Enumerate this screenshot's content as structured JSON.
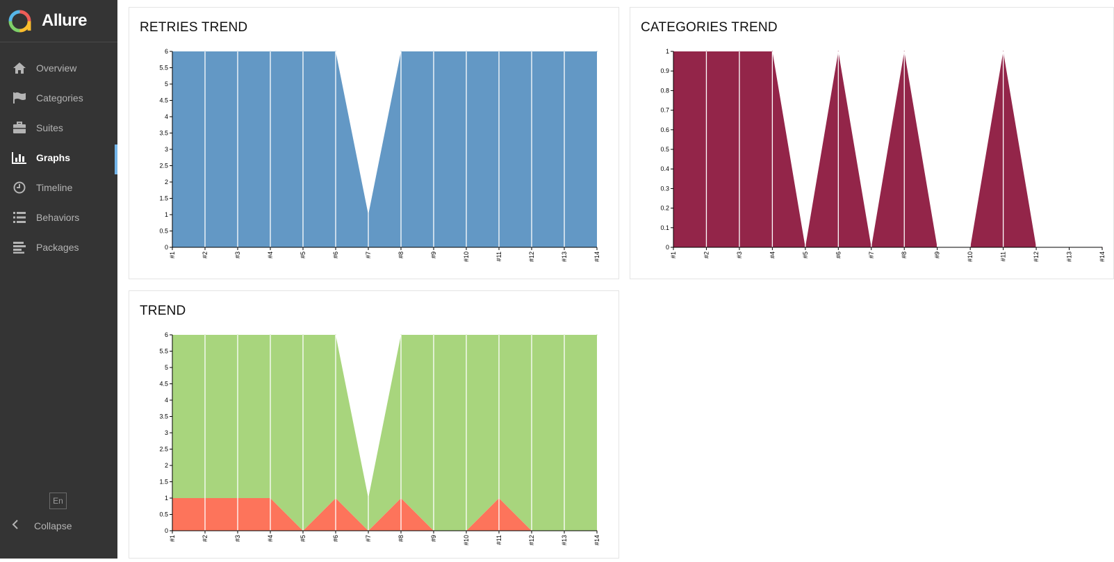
{
  "app": {
    "name": "Allure"
  },
  "colors": {
    "sidebar_bg": "#343434",
    "active_indicator": "#73b5e9",
    "retries": "#6398c5",
    "categories": "#932549",
    "passed": "#a8d57d",
    "failed": "#fd745b"
  },
  "sidebar": {
    "items": [
      {
        "label": "Overview",
        "icon": "home-icon",
        "active": false
      },
      {
        "label": "Categories",
        "icon": "flag-icon",
        "active": false
      },
      {
        "label": "Suites",
        "icon": "briefcase-icon",
        "active": false
      },
      {
        "label": "Graphs",
        "icon": "bar-chart-icon",
        "active": true
      },
      {
        "label": "Timeline",
        "icon": "clock-icon",
        "active": false
      },
      {
        "label": "Behaviors",
        "icon": "list-icon",
        "active": false
      },
      {
        "label": "Packages",
        "icon": "align-left-icon",
        "active": false
      }
    ],
    "language": "En",
    "collapse_label": "Collapse"
  },
  "widgets": {
    "retries": {
      "title": "RETRIES TREND"
    },
    "categories": {
      "title": "CATEGORIES TREND"
    },
    "trend": {
      "title": "TREND"
    }
  },
  "chart_data": [
    {
      "id": "retries",
      "type": "area",
      "title": "RETRIES TREND",
      "categories": [
        "#1",
        "#2",
        "#3",
        "#4",
        "#5",
        "#6",
        "#7",
        "#8",
        "#9",
        "#10",
        "#11",
        "#12",
        "#13",
        "#14"
      ],
      "ylim": [
        0,
        6
      ],
      "yticks": [
        "0",
        "0.5",
        "1",
        "1.5",
        "2",
        "2.5",
        "3",
        "3.5",
        "4",
        "4.5",
        "5",
        "5.5",
        "6"
      ],
      "series": [
        {
          "color": "#6398c5",
          "values": [
            6,
            6,
            6,
            6,
            6,
            6,
            1,
            6,
            6,
            6,
            6,
            6,
            6,
            6
          ]
        }
      ]
    },
    {
      "id": "categories",
      "type": "area",
      "title": "CATEGORIES TREND",
      "categories": [
        "#1",
        "#2",
        "#3",
        "#4",
        "#5",
        "#6",
        "#7",
        "#8",
        "#9",
        "#10",
        "#11",
        "#12",
        "#13",
        "#14"
      ],
      "ylim": [
        0,
        1
      ],
      "yticks": [
        "0",
        "0.1",
        "0.2",
        "0.3",
        "0.4",
        "0.5",
        "0.6",
        "0.7",
        "0.8",
        "0.9",
        "1"
      ],
      "series": [
        {
          "color": "#932549",
          "values": [
            1,
            1,
            1,
            1,
            0,
            1,
            0,
            1,
            0,
            0,
            1,
            0,
            0,
            0
          ]
        }
      ]
    },
    {
      "id": "trend",
      "type": "area",
      "stacked": true,
      "title": "TREND",
      "categories": [
        "#1",
        "#2",
        "#3",
        "#4",
        "#5",
        "#6",
        "#7",
        "#8",
        "#9",
        "#10",
        "#11",
        "#12",
        "#13",
        "#14"
      ],
      "ylim": [
        0,
        6
      ],
      "yticks": [
        "0",
        "0.5",
        "1",
        "1.5",
        "2",
        "2.5",
        "3",
        "3.5",
        "4",
        "4.5",
        "5",
        "5.5",
        "6"
      ],
      "series": [
        {
          "color": "#fd745b",
          "values": [
            1,
            1,
            1,
            1,
            0,
            1,
            0,
            1,
            0,
            0,
            1,
            0,
            0,
            0
          ]
        },
        {
          "color": "#a8d57d",
          "values": [
            5,
            5,
            5,
            5,
            6,
            5,
            1,
            5,
            6,
            6,
            5,
            6,
            6,
            6
          ]
        }
      ]
    }
  ]
}
